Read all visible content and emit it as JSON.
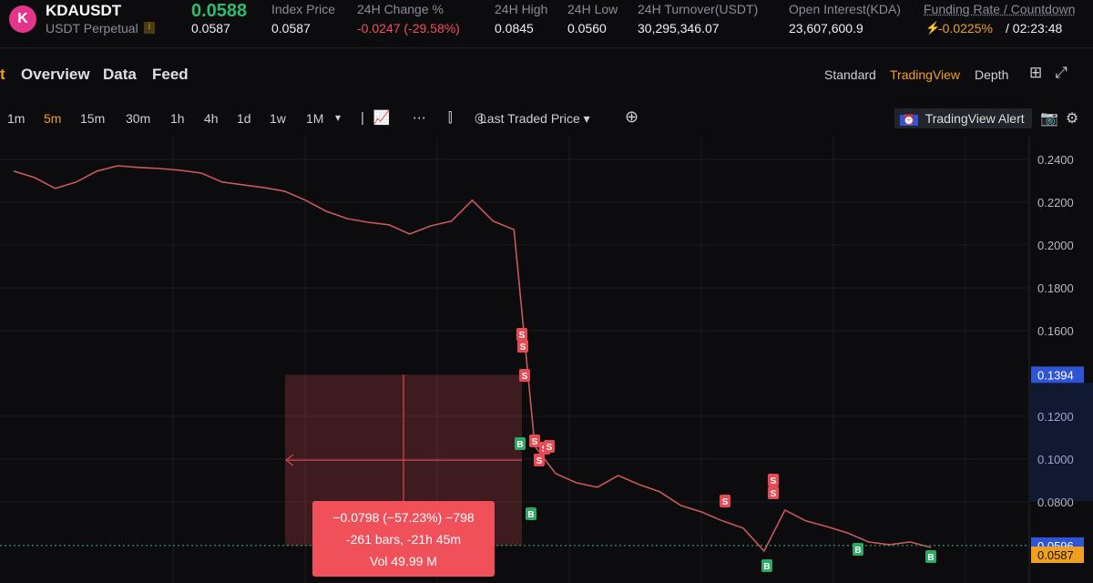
{
  "header": {
    "symbol": "KDAUSDT",
    "contract": "USDT Perpetual",
    "last_price": "0.0588",
    "mark_price": "0.0587",
    "stats": [
      {
        "label": "Index Price",
        "value": "0.0587"
      },
      {
        "label": "24H Change %",
        "value": "-0.0247 (-29.58%)"
      },
      {
        "label": "24H High",
        "value": "0.0845"
      },
      {
        "label": "24H Low",
        "value": "0.0560"
      },
      {
        "label": "24H Turnover(USDT)",
        "value": "30,295,346.07"
      },
      {
        "label": "Open Interest(KDA)",
        "value": "23,607,600.9"
      }
    ],
    "funding": {
      "label": "Funding Rate / Countdown",
      "rate": "-0.0225%",
      "countdown": "/ 02:23:48"
    }
  },
  "tabs": [
    "t",
    "Overview",
    "Data",
    "Feed"
  ],
  "views": [
    "Standard",
    "TradingView",
    "Depth"
  ],
  "intervals": [
    "1m",
    "5m",
    "15m",
    "30m",
    "1h",
    "4h",
    "1d",
    "1w",
    "1M"
  ],
  "price_source": "Last Traded Price",
  "alert_button": "TradingView Alert",
  "chart": {
    "type": "line",
    "color": "#c9585a",
    "values": [
      0.2345,
      0.2315,
      0.2264,
      0.2294,
      0.2345,
      0.237,
      0.2362,
      0.2357,
      0.2349,
      0.2336,
      0.2294,
      0.2281,
      0.2268,
      0.2251,
      0.2209,
      0.2157,
      0.2123,
      0.2106,
      0.2094,
      0.2051,
      0.2089,
      0.2111,
      0.2209,
      0.2111,
      0.2072,
      0.106,
      0.0932,
      0.0889,
      0.0868,
      0.0923,
      0.0881,
      0.0847,
      0.0783,
      0.0753,
      0.0711,
      0.0677,
      0.057,
      0.0762,
      0.0711,
      0.0685,
      0.0655,
      0.0613,
      0.06,
      0.0613,
      0.0587
    ],
    "ylim": [
      0.0421,
      0.2506
    ],
    "yticks": [
      {
        "value": 0.24,
        "label": "0.2400"
      },
      {
        "value": 0.22,
        "label": "0.2200"
      },
      {
        "value": 0.2,
        "label": "0.2000"
      },
      {
        "value": 0.18,
        "label": "0.1800"
      },
      {
        "value": 0.16,
        "label": "0.1600"
      },
      {
        "value": 0.12,
        "label": "0.1200"
      },
      {
        "value": 0.1,
        "label": "0.1000"
      },
      {
        "value": 0.08,
        "label": "0.0800"
      }
    ],
    "price_tags": [
      {
        "value": 0.1394,
        "label": "0.1394",
        "color": "#2f55d4"
      },
      {
        "value": 0.0596,
        "label": "0.0596",
        "color": "#2f55d4"
      },
      {
        "value": 0.0587,
        "label": "0.0587",
        "color": "#f0a020"
      }
    ],
    "measure": [
      "−0.0798 (−57.23%) −798",
      "-261 bars, -21h 45m",
      "Vol 49.99 M"
    ],
    "trade_markers": [
      "S",
      "S",
      "S",
      "S",
      "S",
      "S",
      "S",
      "S",
      "S",
      "S",
      "B",
      "B",
      "B",
      "B",
      "B"
    ]
  }
}
